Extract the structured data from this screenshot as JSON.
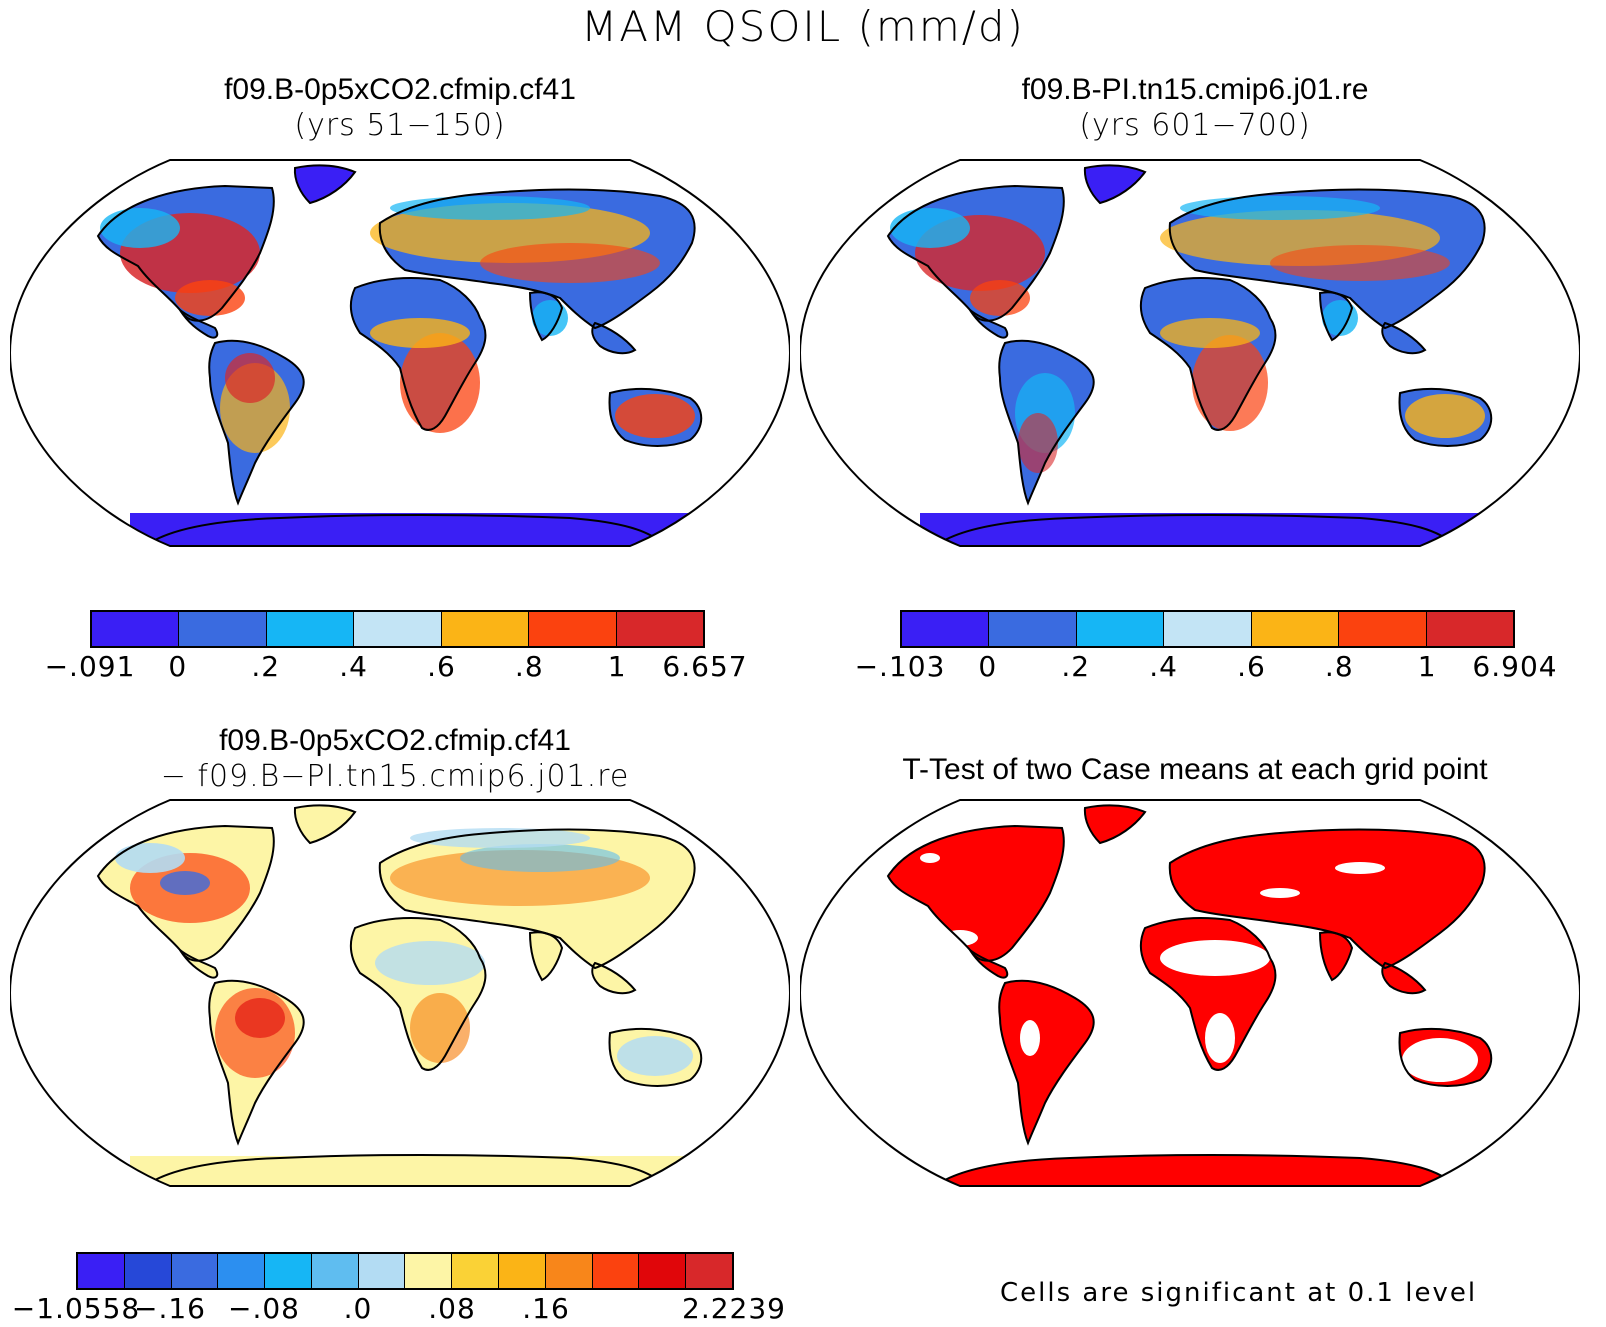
{
  "main_title": "MAM QSOIL (mm/d)",
  "panels": {
    "p1": {
      "line1": "f09.B-0p5xCO2.cfmip.cf41",
      "line2": "(yrs 51−150)"
    },
    "p2": {
      "line1": "f09.B-PI.tn15.cmip6.j01.re",
      "line2": "(yrs 601−700)"
    },
    "p3": {
      "line1": "f09.B-0p5xCO2.cfmip.cf41",
      "line2": "− f09.B−PI.tn15.cmip6.j01.re"
    },
    "p4": {
      "line1": "T-Test of two Case means at each grid point"
    }
  },
  "colorbars": {
    "cb1": {
      "colors": [
        "#3a1ff5",
        "#3a6be0",
        "#16b6f5",
        "#c3e4f5",
        "#fbb416",
        "#fb420f",
        "#d8282a"
      ],
      "labels": [
        "−.091",
        "0",
        ".2",
        ".4",
        ".6",
        ".8",
        "1",
        "6.657"
      ]
    },
    "cb2": {
      "colors": [
        "#3a1ff5",
        "#3a6be0",
        "#16b6f5",
        "#c3e4f5",
        "#fbb416",
        "#fb420f",
        "#d8282a"
      ],
      "labels": [
        "−.103",
        "0",
        ".2",
        ".4",
        ".6",
        ".8",
        "1",
        "6.904"
      ]
    },
    "cb3": {
      "colors": [
        "#3a1ff5",
        "#2648d8",
        "#3a6be0",
        "#2c8ff0",
        "#16b6f5",
        "#5fbdf0",
        "#b3dcf3",
        "#fdf5a6",
        "#fad236",
        "#fbb416",
        "#f8861a",
        "#fb420f",
        "#e0060a",
        "#d8282a"
      ],
      "labels": [
        "−1.0558",
        "−.16",
        "−.08",
        ".0",
        ".08",
        ".16",
        "2.2239"
      ],
      "label_edges": [
        0,
        2,
        4,
        6,
        8,
        10,
        14
      ]
    }
  },
  "significance_note": "Cells are significant at 0.1 level",
  "significance_color": "#ff0000"
}
